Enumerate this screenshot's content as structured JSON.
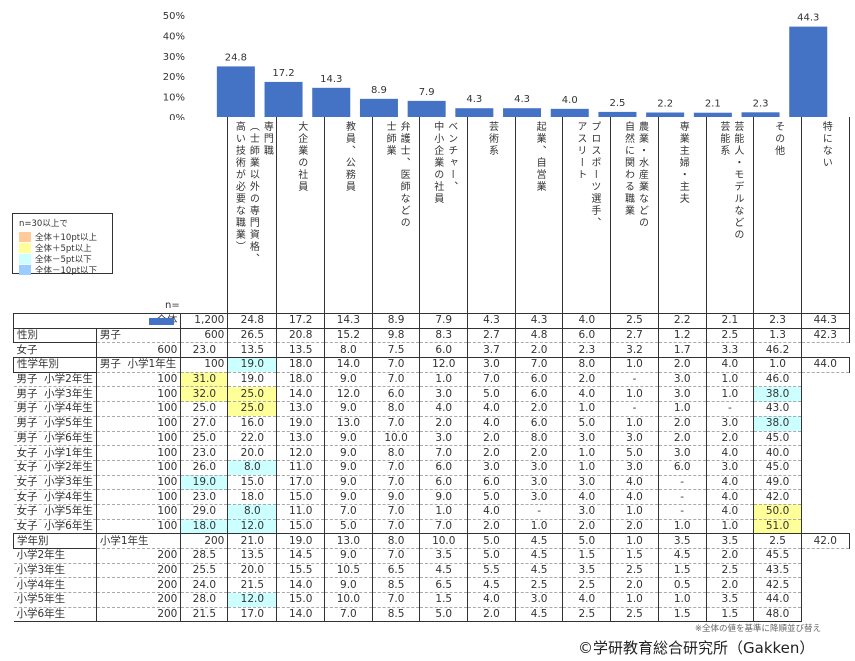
{
  "chart_data": {
    "type": "bar",
    "ylim": [
      0,
      50
    ],
    "yticks": [
      "0%",
      "10%",
      "20%",
      "30%",
      "40%",
      "50%"
    ],
    "bar_color": "#4472C4",
    "categories": [
      "専門職\n（士師業以外の専門資格、\n高い技術が必要な職業）",
      "大企業の社員",
      "教員、公務員",
      "弁護士、医師などの\n士師業",
      "ベンチャー、\n中小企業の社員",
      "芸術系",
      "起業、自営業",
      "プロスポーツ選手、\nアスリート",
      "農業・水産業などの\n自然に関わる職業",
      "専業主婦・主夫",
      "芸能人・モデルなどの\n芸能系",
      "その他",
      "特にない"
    ],
    "values": [
      24.8,
      17.2,
      14.3,
      8.9,
      7.9,
      4.3,
      4.3,
      4.0,
      2.5,
      2.2,
      2.1,
      2.3,
      44.3
    ],
    "value_labels": [
      "24.8",
      "17.2",
      "14.3",
      "8.9",
      "7.9",
      "4.3",
      "4.3",
      "4.0",
      "2.5",
      "2.2",
      "2.1",
      "2.3",
      "44.3"
    ]
  },
  "legend": {
    "title": "n=30以上で",
    "items": [
      {
        "label": "全体＋10pt以上",
        "color": "#FFCC99"
      },
      {
        "label": "全体＋5pt以上",
        "color": "#FFFF99"
      },
      {
        "label": "全体－5pt以下",
        "color": "#CCFFFF"
      },
      {
        "label": "全体－10pt以下",
        "color": "#99CCFF"
      }
    ]
  },
  "n_label": "n=",
  "table": {
    "sections": [
      {
        "group": "",
        "rows": [
          {
            "label": "全体",
            "n": "1,200",
            "values": [
              "24.8",
              "17.2",
              "14.3",
              "8.9",
              "7.9",
              "4.3",
              "4.3",
              "4.0",
              "2.5",
              "2.2",
              "2.1",
              "2.3",
              "44.3"
            ],
            "hl": {}
          }
        ]
      },
      {
        "group": "性別",
        "rows": [
          {
            "label": "男子",
            "n": "600",
            "values": [
              "26.5",
              "20.8",
              "15.2",
              "9.8",
              "8.3",
              "2.7",
              "4.8",
              "6.0",
              "2.7",
              "1.2",
              "2.5",
              "1.3",
              "42.3"
            ],
            "hl": {}
          },
          {
            "label": "女子",
            "n": "600",
            "values": [
              "23.0",
              "13.5",
              "13.5",
              "8.0",
              "7.5",
              "6.0",
              "3.7",
              "2.0",
              "2.3",
              "3.2",
              "1.7",
              "3.3",
              "46.2"
            ],
            "hl": {}
          }
        ]
      },
      {
        "group": "性学年別",
        "rows": [
          {
            "label": "男子  小学1年生",
            "n": "100",
            "values": [
              "19.0",
              "18.0",
              "14.0",
              "7.0",
              "12.0",
              "3.0",
              "7.0",
              "8.0",
              "1.0",
              "2.0",
              "4.0",
              "1.0",
              "44.0"
            ],
            "hl": {
              "0": "#CCFFFF"
            }
          },
          {
            "label": "男子  小学2年生",
            "n": "100",
            "values": [
              "31.0",
              "19.0",
              "18.0",
              "9.0",
              "7.0",
              "1.0",
              "7.0",
              "6.0",
              "2.0",
              "-",
              "3.0",
              "1.0",
              "46.0"
            ],
            "hl": {
              "0": "#FFFF99"
            }
          },
          {
            "label": "男子  小学3年生",
            "n": "100",
            "values": [
              "32.0",
              "25.0",
              "14.0",
              "12.0",
              "6.0",
              "3.0",
              "5.0",
              "6.0",
              "4.0",
              "1.0",
              "3.0",
              "1.0",
              "38.0"
            ],
            "hl": {
              "0": "#FFFF99",
              "1": "#FFFF99",
              "12": "#CCFFFF"
            }
          },
          {
            "label": "男子  小学4年生",
            "n": "100",
            "values": [
              "25.0",
              "25.0",
              "13.0",
              "9.0",
              "8.0",
              "4.0",
              "4.0",
              "2.0",
              "1.0",
              "-",
              "1.0",
              "-",
              "43.0"
            ],
            "hl": {
              "1": "#FFFF99"
            }
          },
          {
            "label": "男子  小学5年生",
            "n": "100",
            "values": [
              "27.0",
              "16.0",
              "19.0",
              "13.0",
              "7.0",
              "2.0",
              "4.0",
              "6.0",
              "5.0",
              "1.0",
              "2.0",
              "3.0",
              "38.0"
            ],
            "hl": {
              "12": "#CCFFFF"
            }
          },
          {
            "label": "男子  小学6年生",
            "n": "100",
            "values": [
              "25.0",
              "22.0",
              "13.0",
              "9.0",
              "10.0",
              "3.0",
              "2.0",
              "8.0",
              "3.0",
              "3.0",
              "2.0",
              "2.0",
              "45.0"
            ],
            "hl": {}
          },
          {
            "label": "女子  小学1年生",
            "n": "100",
            "values": [
              "23.0",
              "20.0",
              "12.0",
              "9.0",
              "8.0",
              "7.0",
              "2.0",
              "2.0",
              "1.0",
              "5.0",
              "3.0",
              "4.0",
              "40.0"
            ],
            "hl": {}
          },
          {
            "label": "女子  小学2年生",
            "n": "100",
            "values": [
              "26.0",
              "8.0",
              "11.0",
              "9.0",
              "7.0",
              "6.0",
              "3.0",
              "3.0",
              "1.0",
              "3.0",
              "6.0",
              "3.0",
              "45.0"
            ],
            "hl": {
              "1": "#CCFFFF"
            }
          },
          {
            "label": "女子  小学3年生",
            "n": "100",
            "values": [
              "19.0",
              "15.0",
              "17.0",
              "9.0",
              "7.0",
              "6.0",
              "6.0",
              "3.0",
              "3.0",
              "4.0",
              "-",
              "4.0",
              "49.0"
            ],
            "hl": {
              "0": "#CCFFFF"
            }
          },
          {
            "label": "女子  小学4年生",
            "n": "100",
            "values": [
              "23.0",
              "18.0",
              "15.0",
              "9.0",
              "9.0",
              "9.0",
              "5.0",
              "3.0",
              "4.0",
              "4.0",
              "-",
              "4.0",
              "42.0"
            ],
            "hl": {}
          },
          {
            "label": "女子  小学5年生",
            "n": "100",
            "values": [
              "29.0",
              "8.0",
              "11.0",
              "7.0",
              "7.0",
              "1.0",
              "4.0",
              "-",
              "3.0",
              "1.0",
              "-",
              "4.0",
              "50.0"
            ],
            "hl": {
              "1": "#CCFFFF",
              "12": "#FFFF99"
            }
          },
          {
            "label": "女子  小学6年生",
            "n": "100",
            "values": [
              "18.0",
              "12.0",
              "15.0",
              "5.0",
              "7.0",
              "7.0",
              "2.0",
              "1.0",
              "2.0",
              "2.0",
              "1.0",
              "1.0",
              "51.0"
            ],
            "hl": {
              "0": "#CCFFFF",
              "1": "#CCFFFF",
              "12": "#FFFF99"
            }
          }
        ]
      },
      {
        "group": "学年別",
        "rows": [
          {
            "label": "小学1年生",
            "n": "200",
            "values": [
              "21.0",
              "19.0",
              "13.0",
              "8.0",
              "10.0",
              "5.0",
              "4.5",
              "5.0",
              "1.0",
              "3.5",
              "3.5",
              "2.5",
              "42.0"
            ],
            "hl": {}
          },
          {
            "label": "小学2年生",
            "n": "200",
            "values": [
              "28.5",
              "13.5",
              "14.5",
              "9.0",
              "7.0",
              "3.5",
              "5.0",
              "4.5",
              "1.5",
              "1.5",
              "4.5",
              "2.0",
              "45.5"
            ],
            "hl": {}
          },
          {
            "label": "小学3年生",
            "n": "200",
            "values": [
              "25.5",
              "20.0",
              "15.5",
              "10.5",
              "6.5",
              "4.5",
              "5.5",
              "4.5",
              "3.5",
              "2.5",
              "1.5",
              "2.5",
              "43.5"
            ],
            "hl": {}
          },
          {
            "label": "小学4年生",
            "n": "200",
            "values": [
              "24.0",
              "21.5",
              "14.0",
              "9.0",
              "8.5",
              "6.5",
              "4.5",
              "2.5",
              "2.5",
              "2.0",
              "0.5",
              "2.0",
              "42.5"
            ],
            "hl": {}
          },
          {
            "label": "小学5年生",
            "n": "200",
            "values": [
              "28.0",
              "12.0",
              "15.0",
              "10.0",
              "7.0",
              "1.5",
              "4.0",
              "3.0",
              "4.0",
              "1.0",
              "1.0",
              "3.5",
              "44.0"
            ],
            "hl": {
              "1": "#CCFFFF"
            }
          },
          {
            "label": "小学6年生",
            "n": "200",
            "values": [
              "21.5",
              "17.0",
              "14.0",
              "7.0",
              "8.5",
              "5.0",
              "2.0",
              "4.5",
              "2.5",
              "2.5",
              "1.5",
              "1.5",
              "48.0"
            ],
            "hl": {}
          }
        ]
      }
    ]
  },
  "note": "※全体の値を基準に降順並び替え",
  "copyright": "©学研教育総合研究所（Gakken）"
}
